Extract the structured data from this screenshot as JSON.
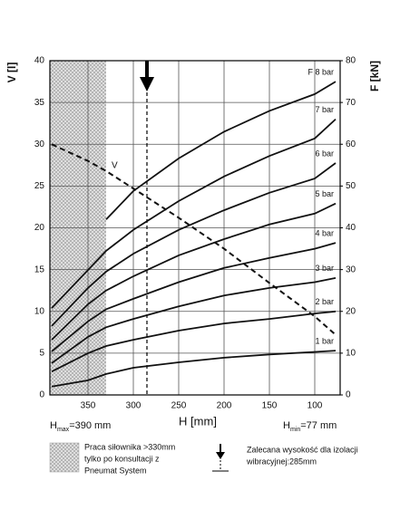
{
  "chart_data": {
    "type": "line",
    "y_label": "V [l]",
    "y2_label": "F [kN]",
    "x_label": "H [mm]",
    "h_max": {
      "symbol": "H",
      "sub": "max",
      "text": "=390 mm"
    },
    "h_min": {
      "symbol": "H",
      "sub": "min",
      "text": "=77 mm"
    },
    "x": [
      390,
      350,
      330,
      300,
      250,
      200,
      150,
      100,
      77
    ],
    "xlim": [
      392,
      72
    ],
    "xticks": [
      350,
      300,
      250,
      200,
      150,
      100
    ],
    "ylim": [
      0,
      40
    ],
    "yticks": [
      0,
      5,
      10,
      15,
      20,
      25,
      30,
      35,
      40
    ],
    "y2lim": [
      0,
      80
    ],
    "y2ticks": [
      0,
      10,
      20,
      30,
      40,
      50,
      60,
      70,
      80
    ],
    "grid": true,
    "restricted_h": 330,
    "recommended_h": 285,
    "series": [
      {
        "name": "V",
        "color": "#111",
        "dashed": true,
        "values": [
          30,
          28,
          26.8,
          24.7,
          21.2,
          17.5,
          13.4,
          9.4,
          7.2
        ]
      },
      {
        "name": "1 bar",
        "color": "#111",
        "axis": "y2",
        "values": [
          2,
          3.5,
          5,
          6.5,
          7.8,
          8.9,
          9.7,
          10.3,
          10.6
        ]
      },
      {
        "name": "2 bar",
        "color": "#111",
        "axis": "y2",
        "values": [
          5.6,
          10,
          11.7,
          13.2,
          15.4,
          17.1,
          18.2,
          19.5,
          20
        ]
      },
      {
        "name": "3 bar",
        "color": "#111",
        "axis": "y2",
        "values": [
          7.6,
          13.9,
          16.2,
          18.2,
          21.2,
          23.8,
          25.6,
          27,
          28
        ]
      },
      {
        "name": "4 bar",
        "color": "#111",
        "axis": "y2",
        "values": [
          10.4,
          17.6,
          20.5,
          23,
          27,
          30.4,
          32.8,
          35,
          36.4
        ]
      },
      {
        "name": "5 bar",
        "color": "#111",
        "axis": "y2",
        "values": [
          13.2,
          21.7,
          25,
          28.4,
          33.4,
          37.3,
          40.8,
          43.4,
          45.8
        ]
      },
      {
        "name": "6 bar",
        "color": "#111",
        "axis": "y2",
        "values": [
          16.5,
          25.6,
          29.5,
          33.8,
          39.5,
          44.2,
          48.4,
          51.8,
          55.5
        ]
      },
      {
        "name": "7 bar",
        "color": "#111",
        "axis": "y2",
        "values": [
          20.8,
          29.9,
          34.5,
          39.5,
          46.4,
          52.3,
          57.2,
          61.4,
          66
        ]
      },
      {
        "name": "F 8 bar",
        "color": "#111",
        "axis": "y2",
        "values": [
          null,
          null,
          42,
          48.8,
          56.6,
          63,
          68,
          72,
          75
        ]
      }
    ]
  },
  "legend_notes": {
    "restricted": [
      "Praca siłownika >330mm",
      "tylko po konsultacji z",
      "Pneumat System"
    ],
    "recommended": [
      "Zalecana wysokość dla izolacji",
      "wibracyjnej:285mm"
    ]
  }
}
